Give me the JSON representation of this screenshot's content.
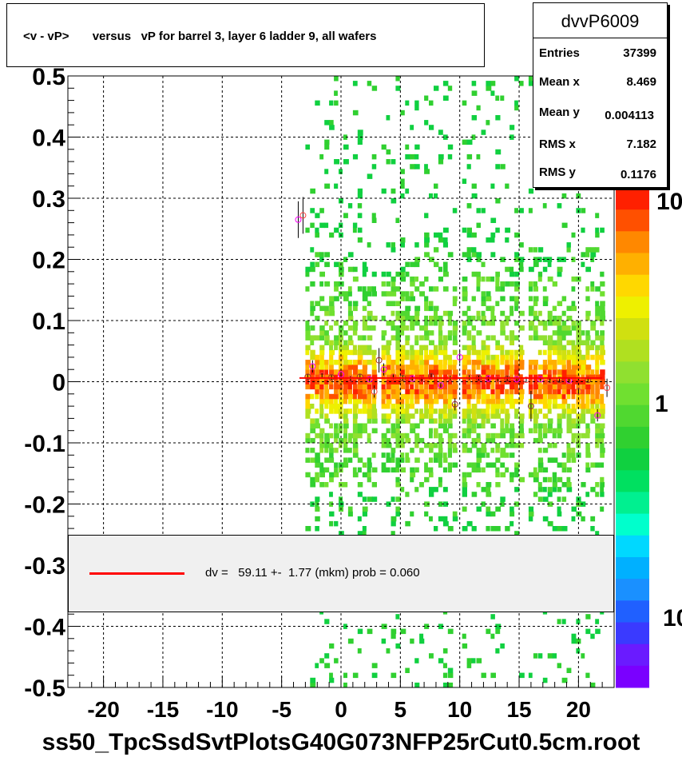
{
  "chart_data": {
    "type": "scatter",
    "title": "<v - vP>       versus   vP for barrel 3, layer 6 ladder 9, all wafers",
    "xlabel": "",
    "ylabel": "",
    "xlim": [
      -23,
      23
    ],
    "ylim": [
      -0.5,
      0.5
    ],
    "xticks": [
      -20,
      -15,
      -10,
      -5,
      0,
      5,
      10,
      15,
      20
    ],
    "yticks": [
      0.5,
      0.4,
      0.3,
      0.2,
      0.1,
      0,
      -0.1,
      -0.2,
      -0.3,
      -0.4,
      -0.5
    ],
    "xtick_labels": [
      "-20",
      "-15",
      "-10",
      "-5",
      "0",
      "5",
      "10",
      "15",
      "20"
    ],
    "ytick_labels": [
      "0.5",
      "0.4",
      "0.3",
      "0.2",
      "0.1",
      "0",
      "-0.1",
      "-0.2",
      "-0.3",
      "-0.4",
      "-0.5"
    ],
    "grid": true,
    "histogram_region": {
      "x": [
        -3,
        22
      ],
      "y": [
        -0.5,
        0.5
      ],
      "gaps_x": [
        3.2,
        10.0,
        15.7
      ]
    },
    "profile_points": {
      "x": [
        -3.6,
        -3.2,
        -2.8,
        -2.4,
        -1.6,
        -0.8,
        0,
        0.8,
        1.6,
        2.4,
        2.8,
        3.2,
        3.6,
        4.4,
        5.2,
        6.0,
        6.8,
        7.6,
        8.4,
        9.2,
        9.6,
        10.0,
        10.8,
        11.6,
        12.4,
        13.2,
        14.0,
        14.8,
        15.6,
        16.0,
        16.8,
        17.6,
        18.4,
        19.2,
        20.0,
        20.8,
        21.6,
        22.4
      ],
      "y": [
        0.265,
        0.272,
        0.008,
        0.025,
        0.01,
        0.007,
        0.012,
        0.005,
        0.008,
        0.004,
        -0.016,
        0.035,
        0.02,
        0.008,
        0.006,
        0.005,
        0.004,
        0.009,
        -0.006,
        0.006,
        -0.037,
        0.04,
        0.007,
        0.006,
        0.005,
        0.004,
        0.005,
        0.004,
        0.003,
        -0.04,
        0.004,
        0.002,
        0.003,
        0.002,
        -0.016,
        0.003,
        -0.055,
        -0.01
      ],
      "errors": [
        0.03,
        0.03,
        0.005,
        0.01,
        0.005,
        0.004,
        0.004,
        0.004,
        0.004,
        0.004,
        0.01,
        0.02,
        0.01,
        0.004,
        0.004,
        0.004,
        0.004,
        0.004,
        0.004,
        0.004,
        0.01,
        0.01,
        0.004,
        0.004,
        0.004,
        0.004,
        0.004,
        0.004,
        0.004,
        0.025,
        0.004,
        0.004,
        0.004,
        0.004,
        0.006,
        0.004,
        0.01,
        0.015
      ]
    },
    "fit_line": {
      "x": [
        -3.5,
        22
      ],
      "y": [
        0.006,
        0.006
      ]
    },
    "color_scale": {
      "type": "log",
      "labels": [
        "10",
        "1",
        "10"
      ]
    }
  },
  "stats": {
    "name": "dvvP6009",
    "rows": [
      {
        "label": "Entries",
        "value": "37399"
      },
      {
        "label": "Mean x",
        "value": "8.469"
      },
      {
        "label": "Mean y",
        "value": "0.004113"
      },
      {
        "label": "RMS x",
        "value": "7.182"
      },
      {
        "label": "RMS y",
        "value": "0.1176"
      }
    ]
  },
  "legend": {
    "text": "dv =   59.11 +-  1.77 (mkm) prob = 0.060",
    "line_color": "#ff0000"
  },
  "footer": "ss50_TpcSsdSvtPlotsG40G073NFP25rCut0.5cm.root"
}
